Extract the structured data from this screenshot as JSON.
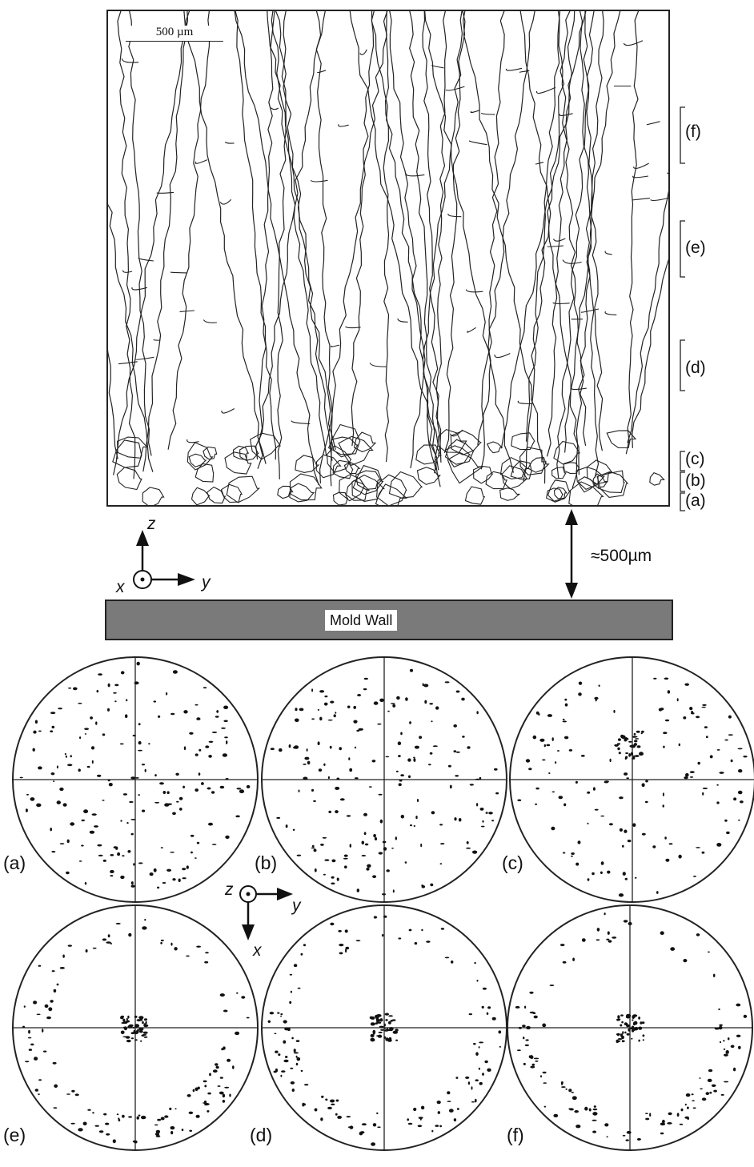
{
  "micrograph": {
    "scale_bar_label": "500 µm",
    "region_brackets": [
      "(f)",
      "(e)",
      "(d)",
      "(c)",
      "(b)",
      "(a)"
    ]
  },
  "axes_top": {
    "z": "z",
    "x": "x",
    "y": "y"
  },
  "distance_label": "≈500µm",
  "mold_wall_label": "Mold Wall",
  "axes_bottom": {
    "z": "z",
    "y": "y",
    "x": "x"
  },
  "pole_figures": [
    {
      "label": "(a)"
    },
    {
      "label": "(b)"
    },
    {
      "label": "(c)"
    },
    {
      "label": "(e)"
    },
    {
      "label": "(d)"
    },
    {
      "label": "(f)"
    }
  ],
  "colors": {
    "ink": "#111111",
    "mold_wall": "#7a7a7a",
    "background": "#ffffff"
  }
}
